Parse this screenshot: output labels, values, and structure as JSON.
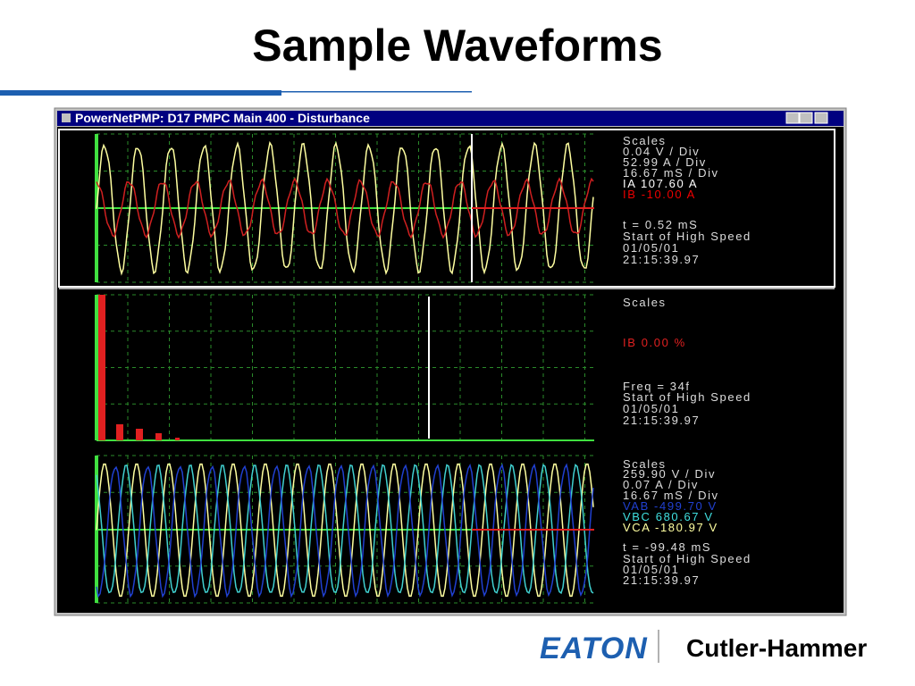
{
  "slide_title": "Sample Waveforms",
  "window": {
    "title": "PowerNetPMP: D17 PMPC Main 400 - Disturbance"
  },
  "panels": [
    {
      "lines": [
        "Scales",
        "0.04 V / Div",
        "52.99 A / Div",
        "16.67 mS / Div",
        "IA   107.60 A",
        "IB   -10.00 A",
        "t =   0.52 mS",
        "Start of High Speed",
        "01/05/01",
        "21:15:39.97"
      ]
    },
    {
      "lines": [
        "Scales",
        "IB    0.00 %",
        "Freq = 34f",
        "Start of High Speed",
        "01/05/01",
        "21:15:39.97"
      ]
    },
    {
      "lines": [
        "Scales",
        "259.90 V / Div",
        "0.07 A / Div",
        "16.67 mS / Div",
        "VAB  -499.70 V",
        "VBC   680.67 V",
        "VCA  -180.97 V",
        "t = -99.48 mS",
        "Start of High Speed",
        "01/05/01",
        "21:15:39.97"
      ]
    }
  ],
  "footer": {
    "brand": "EATON",
    "division": "Cutler-Hammer"
  }
}
